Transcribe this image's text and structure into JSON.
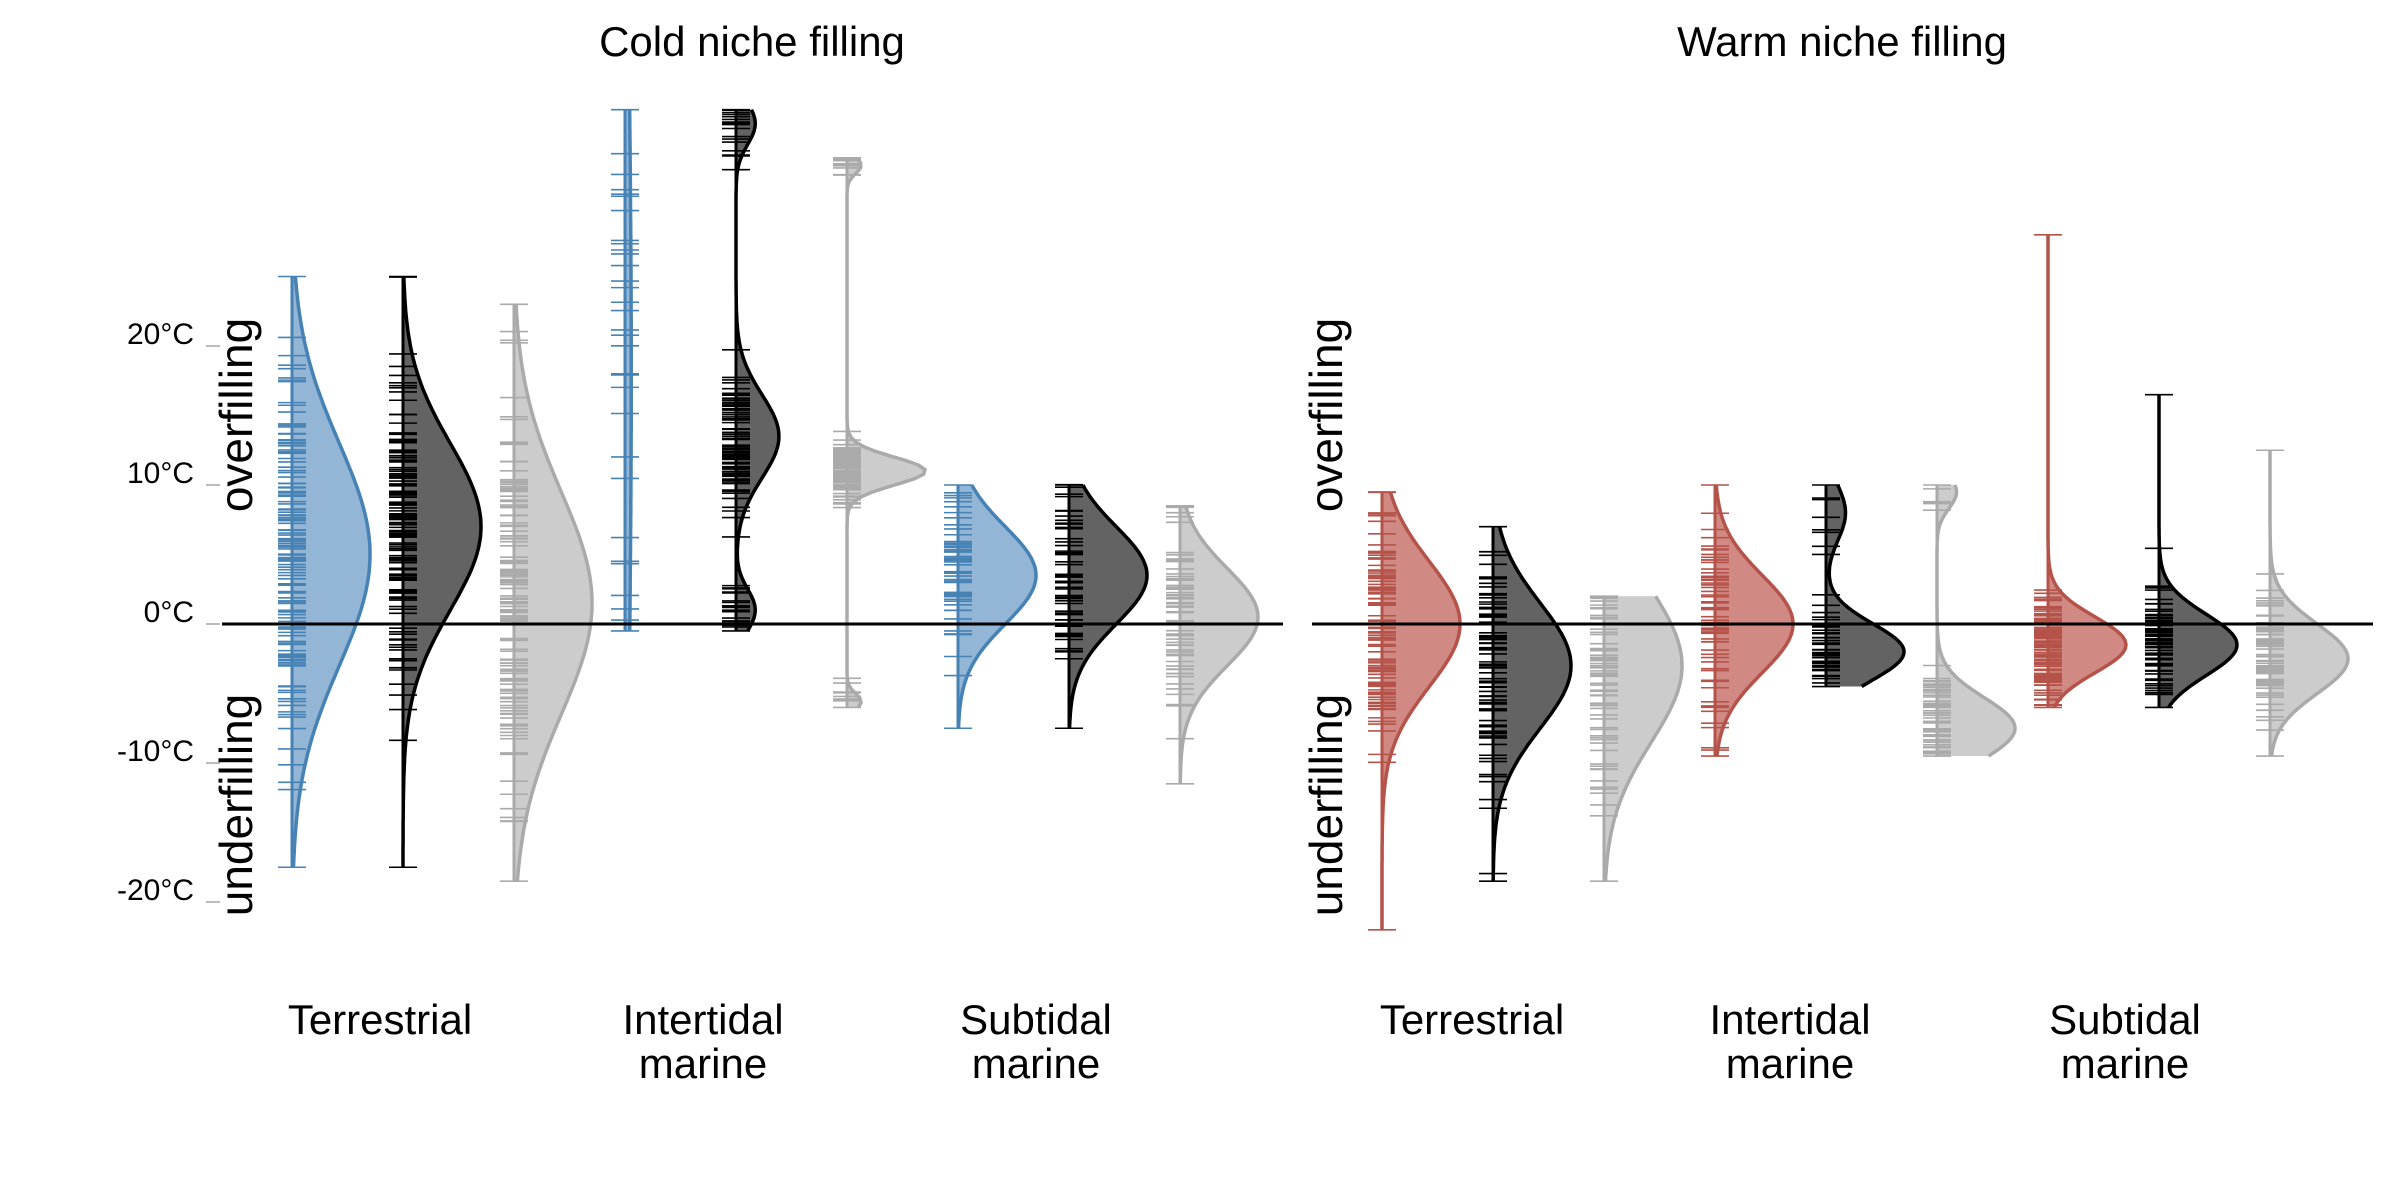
{
  "chart_data": [
    {
      "type": "raincloud",
      "title": "Cold niche filling",
      "ylabel_top": "overfilling",
      "ylabel_bottom": "underfilling",
      "y_unit": "°C",
      "yticks": [
        20,
        10,
        0,
        -10,
        -20
      ],
      "ytick_labels": [
        "20°C",
        "10°C",
        "0°C",
        "-10°C",
        "-20°C"
      ],
      "ylim": [
        -24,
        37
      ],
      "reference_line": 0,
      "categories": [
        {
          "label_lines": [
            "Terrestrial"
          ]
        },
        {
          "label_lines": [
            "Intertidal",
            "marine"
          ]
        },
        {
          "label_lines": [
            "Subtidal",
            "marine"
          ]
        }
      ],
      "series_colors": [
        "#4682b4",
        "#000000",
        "#aaaaaa"
      ],
      "series_fills": [
        "#93b5d6",
        "#636363",
        "#cccccc"
      ],
      "groups": [
        {
          "category": 0,
          "series": 0,
          "min": -17.5,
          "max": 25,
          "peaks": [
            {
              "mu": 5,
              "sd": 8,
              "w": 1
            }
          ],
          "amplitude": 1.0
        },
        {
          "category": 0,
          "series": 1,
          "min": -17.5,
          "max": 25,
          "peaks": [
            {
              "mu": 7,
              "sd": 6,
              "w": 1
            }
          ],
          "amplitude": 1.0
        },
        {
          "category": 0,
          "series": 2,
          "min": -18.5,
          "max": 23,
          "peaks": [
            {
              "mu": 1.5,
              "sd": 8,
              "w": 1
            }
          ],
          "amplitude": 1.0
        },
        {
          "category": 1,
          "series": 0,
          "min": -0.5,
          "max": 37,
          "peaks": [
            {
              "mu": 18,
              "sd": 25,
              "w": 1
            }
          ],
          "amplitude": 0.08
        },
        {
          "category": 1,
          "series": 1,
          "min": -0.5,
          "max": 37,
          "peaks": [
            {
              "mu": 13.5,
              "sd": 3,
              "w": 1
            },
            {
              "mu": 1,
              "sd": 1.5,
              "w": 0.45
            },
            {
              "mu": 36,
              "sd": 1.5,
              "w": 0.45
            }
          ],
          "amplitude": 0.55
        },
        {
          "category": 1,
          "series": 2,
          "min": -6,
          "max": 33.5,
          "peaks": [
            {
              "mu": 11,
              "sd": 1,
              "w": 1
            },
            {
              "mu": 33,
              "sd": 0.6,
              "w": 0.18
            },
            {
              "mu": -5.6,
              "sd": 0.6,
              "w": 0.18
            }
          ],
          "amplitude": 1.0
        },
        {
          "category": 2,
          "series": 0,
          "min": -7.5,
          "max": 10,
          "peaks": [
            {
              "mu": 3.5,
              "sd": 3.5,
              "w": 1
            }
          ],
          "amplitude": 1.0
        },
        {
          "category": 2,
          "series": 1,
          "min": -7.5,
          "max": 10,
          "peaks": [
            {
              "mu": 3.5,
              "sd": 3.5,
              "w": 1
            }
          ],
          "amplitude": 1.0
        },
        {
          "category": 2,
          "series": 2,
          "min": -11.5,
          "max": 8.5,
          "peaks": [
            {
              "mu": 0.5,
              "sd": 3.5,
              "w": 1
            }
          ],
          "amplitude": 1.0
        }
      ]
    },
    {
      "type": "raincloud",
      "title": "Warm niche filling",
      "ylabel_top": "overfilling",
      "ylabel_bottom": "underfilling",
      "y_unit": "°C",
      "ylim": [
        -24,
        37
      ],
      "reference_line": 0,
      "categories": [
        {
          "label_lines": [
            "Terrestrial"
          ]
        },
        {
          "label_lines": [
            "Intertidal",
            "marine"
          ]
        },
        {
          "label_lines": [
            "Subtidal",
            "marine"
          ]
        }
      ],
      "series_colors": [
        "#b5534a",
        "#000000",
        "#aaaaaa"
      ],
      "series_fills": [
        "#d08a83",
        "#636363",
        "#cccccc"
      ],
      "groups": [
        {
          "category": 0,
          "series": 0,
          "min": -22,
          "max": 9.5,
          "peaks": [
            {
              "mu": 0,
              "sd": 4.5,
              "w": 1
            }
          ],
          "amplitude": 1.0
        },
        {
          "category": 0,
          "series": 1,
          "min": -18.5,
          "max": 7,
          "peaks": [
            {
              "mu": -3,
              "sd": 4.5,
              "w": 1
            }
          ],
          "amplitude": 1.0
        },
        {
          "category": 0,
          "series": 2,
          "min": -18.5,
          "max": 2,
          "peaks": [
            {
              "mu": -3,
              "sd": 5.5,
              "w": 1
            }
          ],
          "amplitude": 1.0
        },
        {
          "category": 1,
          "series": 0,
          "min": -9.5,
          "max": 10,
          "peaks": [
            {
              "mu": 0,
              "sd": 3.5,
              "w": 1
            }
          ],
          "amplitude": 1.0
        },
        {
          "category": 1,
          "series": 1,
          "min": -4.5,
          "max": 10,
          "peaks": [
            {
              "mu": -2,
              "sd": 2,
              "w": 1
            },
            {
              "mu": 8,
              "sd": 2,
              "w": 0.25
            }
          ],
          "amplitude": 1.0
        },
        {
          "category": 1,
          "series": 2,
          "min": -9.5,
          "max": 10,
          "peaks": [
            {
              "mu": -7.5,
              "sd": 2.2,
              "w": 1
            },
            {
              "mu": 9.5,
              "sd": 1.2,
              "w": 0.25
            }
          ],
          "amplitude": 1.0
        },
        {
          "category": 2,
          "series": 0,
          "min": -6,
          "max": 28,
          "peaks": [
            {
              "mu": -1.5,
              "sd": 2,
              "w": 1
            }
          ],
          "amplitude": 1.0
        },
        {
          "category": 2,
          "series": 1,
          "min": -6,
          "max": 16.5,
          "peaks": [
            {
              "mu": -1.5,
              "sd": 2.2,
              "w": 1
            }
          ],
          "amplitude": 1.0
        },
        {
          "category": 2,
          "series": 2,
          "min": -9.5,
          "max": 12.5,
          "peaks": [
            {
              "mu": -2.5,
              "sd": 2.5,
              "w": 1
            }
          ],
          "amplitude": 1.0
        }
      ]
    }
  ]
}
